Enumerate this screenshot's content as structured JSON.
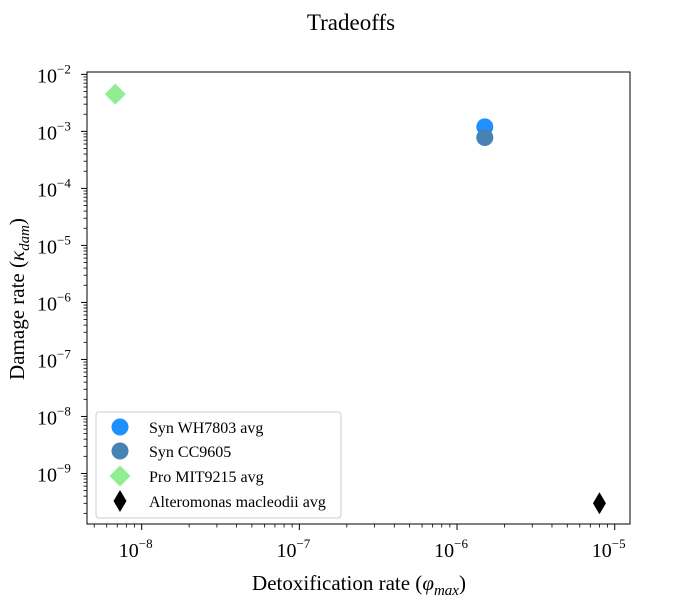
{
  "chart_data": {
    "type": "scatter",
    "title": "Tradeoffs",
    "xlabel": {
      "text": "Detoxification rate (",
      "symbol": "φ",
      "sub": "max",
      "close": ")"
    },
    "ylabel": {
      "text": "Damage rate (",
      "symbol": "κ",
      "sub": "dam",
      "close": ")"
    },
    "xscale": "log",
    "yscale": "log",
    "xlim": [
      4.5e-09,
      1.25e-05
    ],
    "ylim": [
      1.3e-10,
      0.011
    ],
    "grid": false,
    "legend_position": "lower-left",
    "x_tick_labels": [
      {
        "base": "10",
        "exp": "−8"
      },
      {
        "base": "10",
        "exp": "−7"
      },
      {
        "base": "10",
        "exp": "−6"
      },
      {
        "base": "10",
        "exp": "−5"
      }
    ],
    "y_tick_labels": [
      {
        "base": "10",
        "exp": "−2"
      },
      {
        "base": "10",
        "exp": "−3"
      },
      {
        "base": "10",
        "exp": "−4"
      },
      {
        "base": "10",
        "exp": "−5"
      },
      {
        "base": "10",
        "exp": "−6"
      },
      {
        "base": "10",
        "exp": "−7"
      },
      {
        "base": "10",
        "exp": "−8"
      },
      {
        "base": "10",
        "exp": "−9"
      }
    ],
    "series": [
      {
        "name": "Syn WH7803 avg",
        "marker": "circle",
        "color": "#1e90ff",
        "points": [
          {
            "x": 1.5e-06,
            "y": 0.0012
          }
        ]
      },
      {
        "name": "Syn CC9605",
        "marker": "circle",
        "color": "#4682b4",
        "points": [
          {
            "x": 1.5e-06,
            "y": 0.00078
          }
        ]
      },
      {
        "name": "Pro MIT9215 avg",
        "marker": "diamond",
        "color": "#90ee90",
        "points": [
          {
            "x": 6.8e-09,
            "y": 0.0045
          }
        ]
      },
      {
        "name": "Alteromonas macleodii avg",
        "marker": "thin_diamond",
        "color": "#000000",
        "points": [
          {
            "x": 8e-06,
            "y": 3e-10
          }
        ]
      }
    ]
  }
}
